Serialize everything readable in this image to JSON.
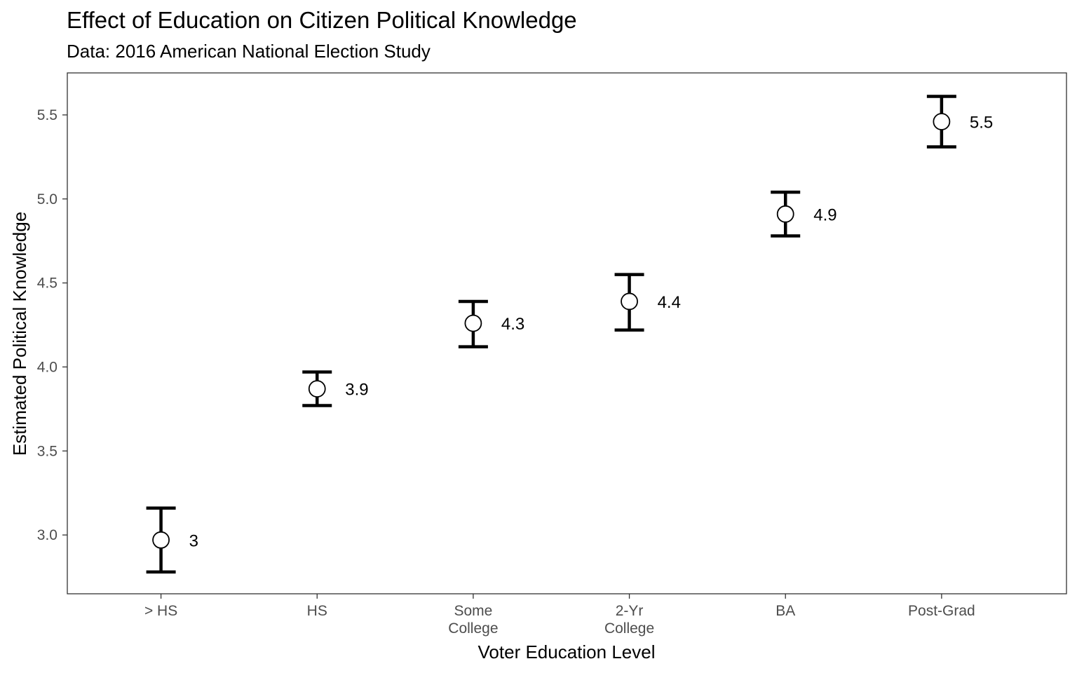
{
  "chart_data": {
    "type": "scatter",
    "title": "Effect of Education on Citizen Political Knowledge",
    "subtitle": "Data: 2016 American National Election Study",
    "xlabel": "Voter Education Level",
    "ylabel": "Estimated Political Knowledge",
    "categories": [
      "> HS",
      "HS",
      "Some College",
      "2-Yr College",
      "BA",
      "Post-Grad"
    ],
    "category_lines": [
      [
        "> HS"
      ],
      [
        "HS"
      ],
      [
        "Some",
        "College"
      ],
      [
        "2-Yr",
        "College"
      ],
      [
        "BA"
      ],
      [
        "Post-Grad"
      ]
    ],
    "values": [
      2.97,
      3.87,
      4.26,
      4.39,
      4.91,
      5.46
    ],
    "lower": [
      2.78,
      3.77,
      4.12,
      4.22,
      4.78,
      5.31
    ],
    "upper": [
      3.16,
      3.97,
      4.39,
      4.55,
      5.04,
      5.61
    ],
    "data_labels": [
      "3",
      "3.9",
      "4.3",
      "4.4",
      "4.9",
      "5.5"
    ],
    "ylim": [
      2.65,
      5.75
    ],
    "y_ticks": [
      3.0,
      3.5,
      4.0,
      4.5,
      5.0,
      5.5
    ],
    "y_tick_labels": [
      "3.0",
      "3.5",
      "4.0",
      "4.5",
      "5.0",
      "5.5"
    ],
    "grid": false,
    "legend": "none",
    "colors": {
      "marks": "#000000",
      "point_fill": "#ffffff",
      "tick_text": "#4d4d4d"
    }
  }
}
